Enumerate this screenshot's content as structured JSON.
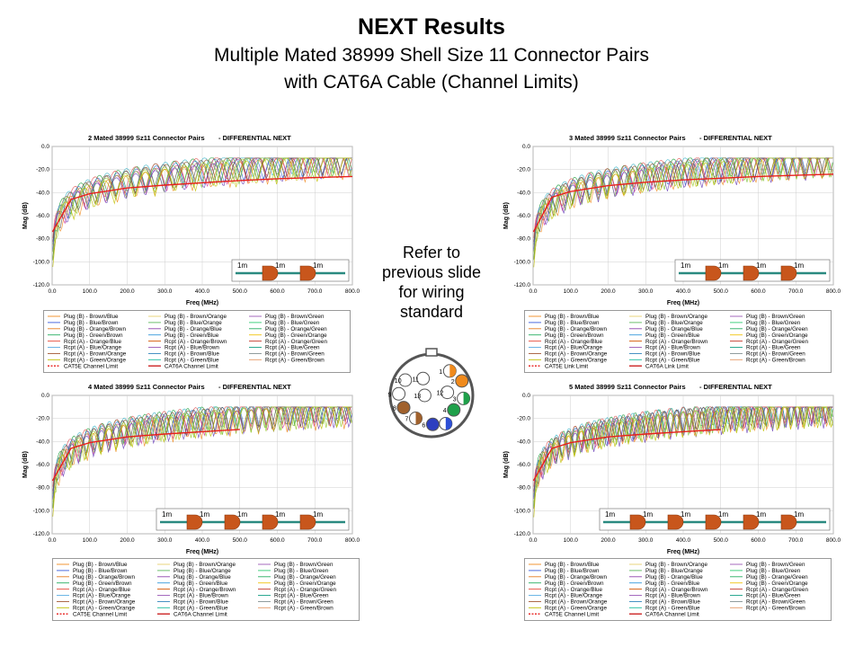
{
  "slide": {
    "title": "NEXT Results",
    "subtitle_line1": "Multiple Mated 38999 Shell Size 11 Connector Pairs",
    "subtitle_line2": "with CAT6A Cable (Channel Limits)",
    "side_note_lines": [
      "Refer to",
      "previous slide",
      "for wiring",
      "standard"
    ]
  },
  "connector_pins": [
    "1",
    "2",
    "3",
    "4",
    "5",
    "6",
    "7",
    "8",
    "9",
    "10",
    "11",
    "12",
    "13"
  ],
  "colors": {
    "limit": "#e8201c",
    "axis": "#666666",
    "connector_fill": "#555555"
  },
  "chart_data": [
    {
      "type": "line",
      "title": "2 Mated 38999 Sz11 Connector Pairs",
      "title_suffix": "- DIFFERENTIAL NEXT",
      "xlabel": "Freq (MHz)",
      "ylabel": "Mag (dB)",
      "xlim": [
        0,
        800
      ],
      "ylim": [
        -120,
        0
      ],
      "xticks": [
        "0.0",
        "100.0",
        "200.0",
        "300.0",
        "400.0",
        "500.0",
        "600.0",
        "700.0",
        "800.0"
      ],
      "yticks": [
        "0.0",
        "-20.0",
        "-40.0",
        "-60.0",
        "-80.0",
        "-100.0",
        "-120.0"
      ],
      "grid": true,
      "segment_label": "1m",
      "pairs": 2,
      "limit_series": {
        "name": "CAT6A Channel Limit",
        "x": [
          1,
          50,
          100,
          200,
          300,
          400,
          500,
          600,
          700,
          800
        ],
        "y": [
          -74,
          -46,
          -41,
          -36,
          -33.5,
          -31.5,
          -29.5,
          -28,
          -27,
          -26
        ]
      },
      "legend": [
        "Plug (B) - Brown/Blue",
        "Plug (B) - Brown/Orange",
        "Plug (B) - Brown/Green",
        "Plug (B) - Blue/Brown",
        "Plug (B) - Blue/Orange",
        "Plug (B) - Blue/Green",
        "Plug (B) - Orange/Brown",
        "Plug (B) - Orange/Blue",
        "Plug (B) - Orange/Green",
        "Plug (B) - Green/Brown",
        "Plug (B) - Green/Blue",
        "Plug (B) - Green/Orange",
        "Rcpt (A) - Orange/Blue",
        "Rcpt (A) - Orange/Brown",
        "Rcpt (A) - Orange/Green",
        "Rcpt (A) - Blue/Orange",
        "Rcpt (A) - Blue/Brown",
        "Rcpt (A) - Blue/Green",
        "Rcpt (A) - Brown/Orange",
        "Rcpt (A) - Brown/Blue",
        "Rcpt (A) - Brown/Green",
        "Rcpt (A) - Green/Orange",
        "Rcpt (A) - Green/Blue",
        "Rcpt (A) - Green/Brown",
        "CAT5E Channel Limit",
        "CAT6A Channel Limit"
      ]
    },
    {
      "type": "line",
      "title": "3 Mated 38999 Sz11 Connector Pairs",
      "title_suffix": "- DIFFERENTIAL NEXT",
      "xlabel": "Freq (MHz)",
      "ylabel": "Mag (dB)",
      "xlim": [
        0,
        800
      ],
      "ylim": [
        -120,
        0
      ],
      "xticks": [
        "0.0",
        "100.0",
        "200.0",
        "300.0",
        "400.0",
        "500.0",
        "600.0",
        "700.0",
        "800.0"
      ],
      "yticks": [
        "0.0",
        "-20.0",
        "-40.0",
        "-60.0",
        "-80.0",
        "-100.0",
        "-120.0"
      ],
      "grid": true,
      "segment_label": "1m",
      "pairs": 3,
      "limit_series": {
        "name": "CAT6A Link Limit",
        "x": [
          1,
          50,
          100,
          200,
          300,
          400,
          500,
          600,
          700,
          800
        ],
        "y": [
          -74,
          -44,
          -39,
          -34,
          -31,
          -29,
          -27.5,
          -26,
          -25,
          -24
        ]
      },
      "legend": [
        "Plug (B) - Brown/Blue",
        "Plug (B) - Brown/Orange",
        "Plug (B) - Brown/Green",
        "Plug (B) - Blue/Brown",
        "Plug (B) - Blue/Orange",
        "Plug (B) - Blue/Green",
        "Plug (B) - Orange/Brown",
        "Plug (B) - Orange/Blue",
        "Plug (B) - Orange/Green",
        "Plug (B) - Green/Brown",
        "Plug (B) - Green/Blue",
        "Plug (B) - Green/Orange",
        "Rcpt (A) - Orange/Blue",
        "Rcpt (A) - Orange/Brown",
        "Rcpt (A) - Orange/Green",
        "Rcpt (A) - Blue/Orange",
        "Rcpt (A) - Blue/Brown",
        "Rcpt (A) - Blue/Green",
        "Rcpt (A) - Brown/Orange",
        "Rcpt (A) - Brown/Blue",
        "Rcpt (A) - Brown/Green",
        "Rcpt (A) - Green/Orange",
        "Rcpt (A) - Green/Blue",
        "Rcpt (A) - Green/Brown",
        "CAT5E Link Limit",
        "CAT6A Link Limit"
      ]
    },
    {
      "type": "line",
      "title": "4 Mated 38999 Sz11 Connector Pairs",
      "title_suffix": "- DIFFERENTIAL NEXT",
      "xlabel": "Freq (MHz)",
      "ylabel": "Mag (dB)",
      "xlim": [
        0,
        800
      ],
      "ylim": [
        -120,
        0
      ],
      "xticks": [
        "0.0",
        "100.0",
        "200.0",
        "300.0",
        "400.0",
        "500.0",
        "600.0",
        "700.0",
        "800.0"
      ],
      "yticks": [
        "0.0",
        "-20.0",
        "-40.0",
        "-60.0",
        "-80.0",
        "-100.0",
        "-120.0"
      ],
      "grid": true,
      "segment_label": "1m",
      "pairs": 4,
      "limit_series": {
        "name": "CAT6A Channel Limit",
        "x": [
          1,
          50,
          100,
          200,
          300,
          400,
          500
        ],
        "y": [
          -74,
          -46,
          -41,
          -36,
          -33.5,
          -31.5,
          -29.5
        ]
      },
      "legend": [
        "Plug (B) - Brown/Blue",
        "Plug (B) - Brown/Orange",
        "Plug (B) - Brown/Green",
        "Plug (B) - Blue/Brown",
        "Plug (B) - Blue/Orange",
        "Plug (B) - Blue/Green",
        "Plug (B) - Orange/Brown",
        "Plug (B) - Orange/Blue",
        "Plug (B) - Orange/Green",
        "Plug (B) - Green/Brown",
        "Plug (B) - Green/Blue",
        "Plug (B) - Green/Orange",
        "Rcpt (A) - Orange/Blue",
        "Rcpt (A) - Orange/Brown",
        "Rcpt (A) - Orange/Green",
        "Rcpt (A) - Blue/Orange",
        "Rcpt (A) - Blue/Brown",
        "Rcpt (A) - Blue/Green",
        "Rcpt (A) - Brown/Orange",
        "Rcpt (A) - Brown/Blue",
        "Rcpt (A) - Brown/Green",
        "Rcpt (A) - Green/Orange",
        "Rcpt (A) - Green/Blue",
        "Rcpt (A) - Green/Brown",
        "CAT5E Channel Limit",
        "CAT6A Channel Limit"
      ]
    },
    {
      "type": "line",
      "title": "5 Mated 38999 Sz11 Connector Pairs",
      "title_suffix": "- DIFFERENTIAL NEXT",
      "xlabel": "Freq (MHz)",
      "ylabel": "Mag (dB)",
      "xlim": [
        0,
        800
      ],
      "ylim": [
        -120,
        0
      ],
      "xticks": [
        "0.0",
        "100.0",
        "200.0",
        "300.0",
        "400.0",
        "500.0",
        "600.0",
        "700.0",
        "800.0"
      ],
      "yticks": [
        "0.0",
        "-20.0",
        "-40.0",
        "-60.0",
        "-80.0",
        "-100.0",
        "-120.0"
      ],
      "grid": true,
      "segment_label": "1m",
      "pairs": 5,
      "limit_series": {
        "name": "CAT6A Channel Limit",
        "x": [
          1,
          50,
          100,
          200,
          300,
          400,
          500
        ],
        "y": [
          -74,
          -46,
          -41,
          -36,
          -33.5,
          -31.5,
          -29.5
        ]
      },
      "legend": [
        "Plug (B) - Brown/Blue",
        "Plug (B) - Brown/Orange",
        "Plug (B) - Brown/Green",
        "Plug (B) - Blue/Brown",
        "Plug (B) - Blue/Orange",
        "Plug (B) - Blue/Green",
        "Plug (B) - Orange/Brown",
        "Plug (B) - Orange/Blue",
        "Plug (B) - Orange/Green",
        "Plug (B) - Green/Brown",
        "Plug (B) - Green/Blue",
        "Plug (B) - Green/Orange",
        "Rcpt (A) - Orange/Blue",
        "Rcpt (A) - Orange/Brown",
        "Rcpt (A) - Orange/Green",
        "Rcpt (A) - Blue/Orange",
        "Rcpt (A) - Blue/Brown",
        "Rcpt (A) - Blue/Green",
        "Rcpt (A) - Brown/Orange",
        "Rcpt (A) - Brown/Blue",
        "Rcpt (A) - Brown/Green",
        "Rcpt (A) - Green/Orange",
        "Rcpt (A) - Green/Blue",
        "Rcpt (A) - Green/Brown",
        "CAT5E Channel Limit",
        "CAT6A Channel Limit"
      ]
    }
  ]
}
